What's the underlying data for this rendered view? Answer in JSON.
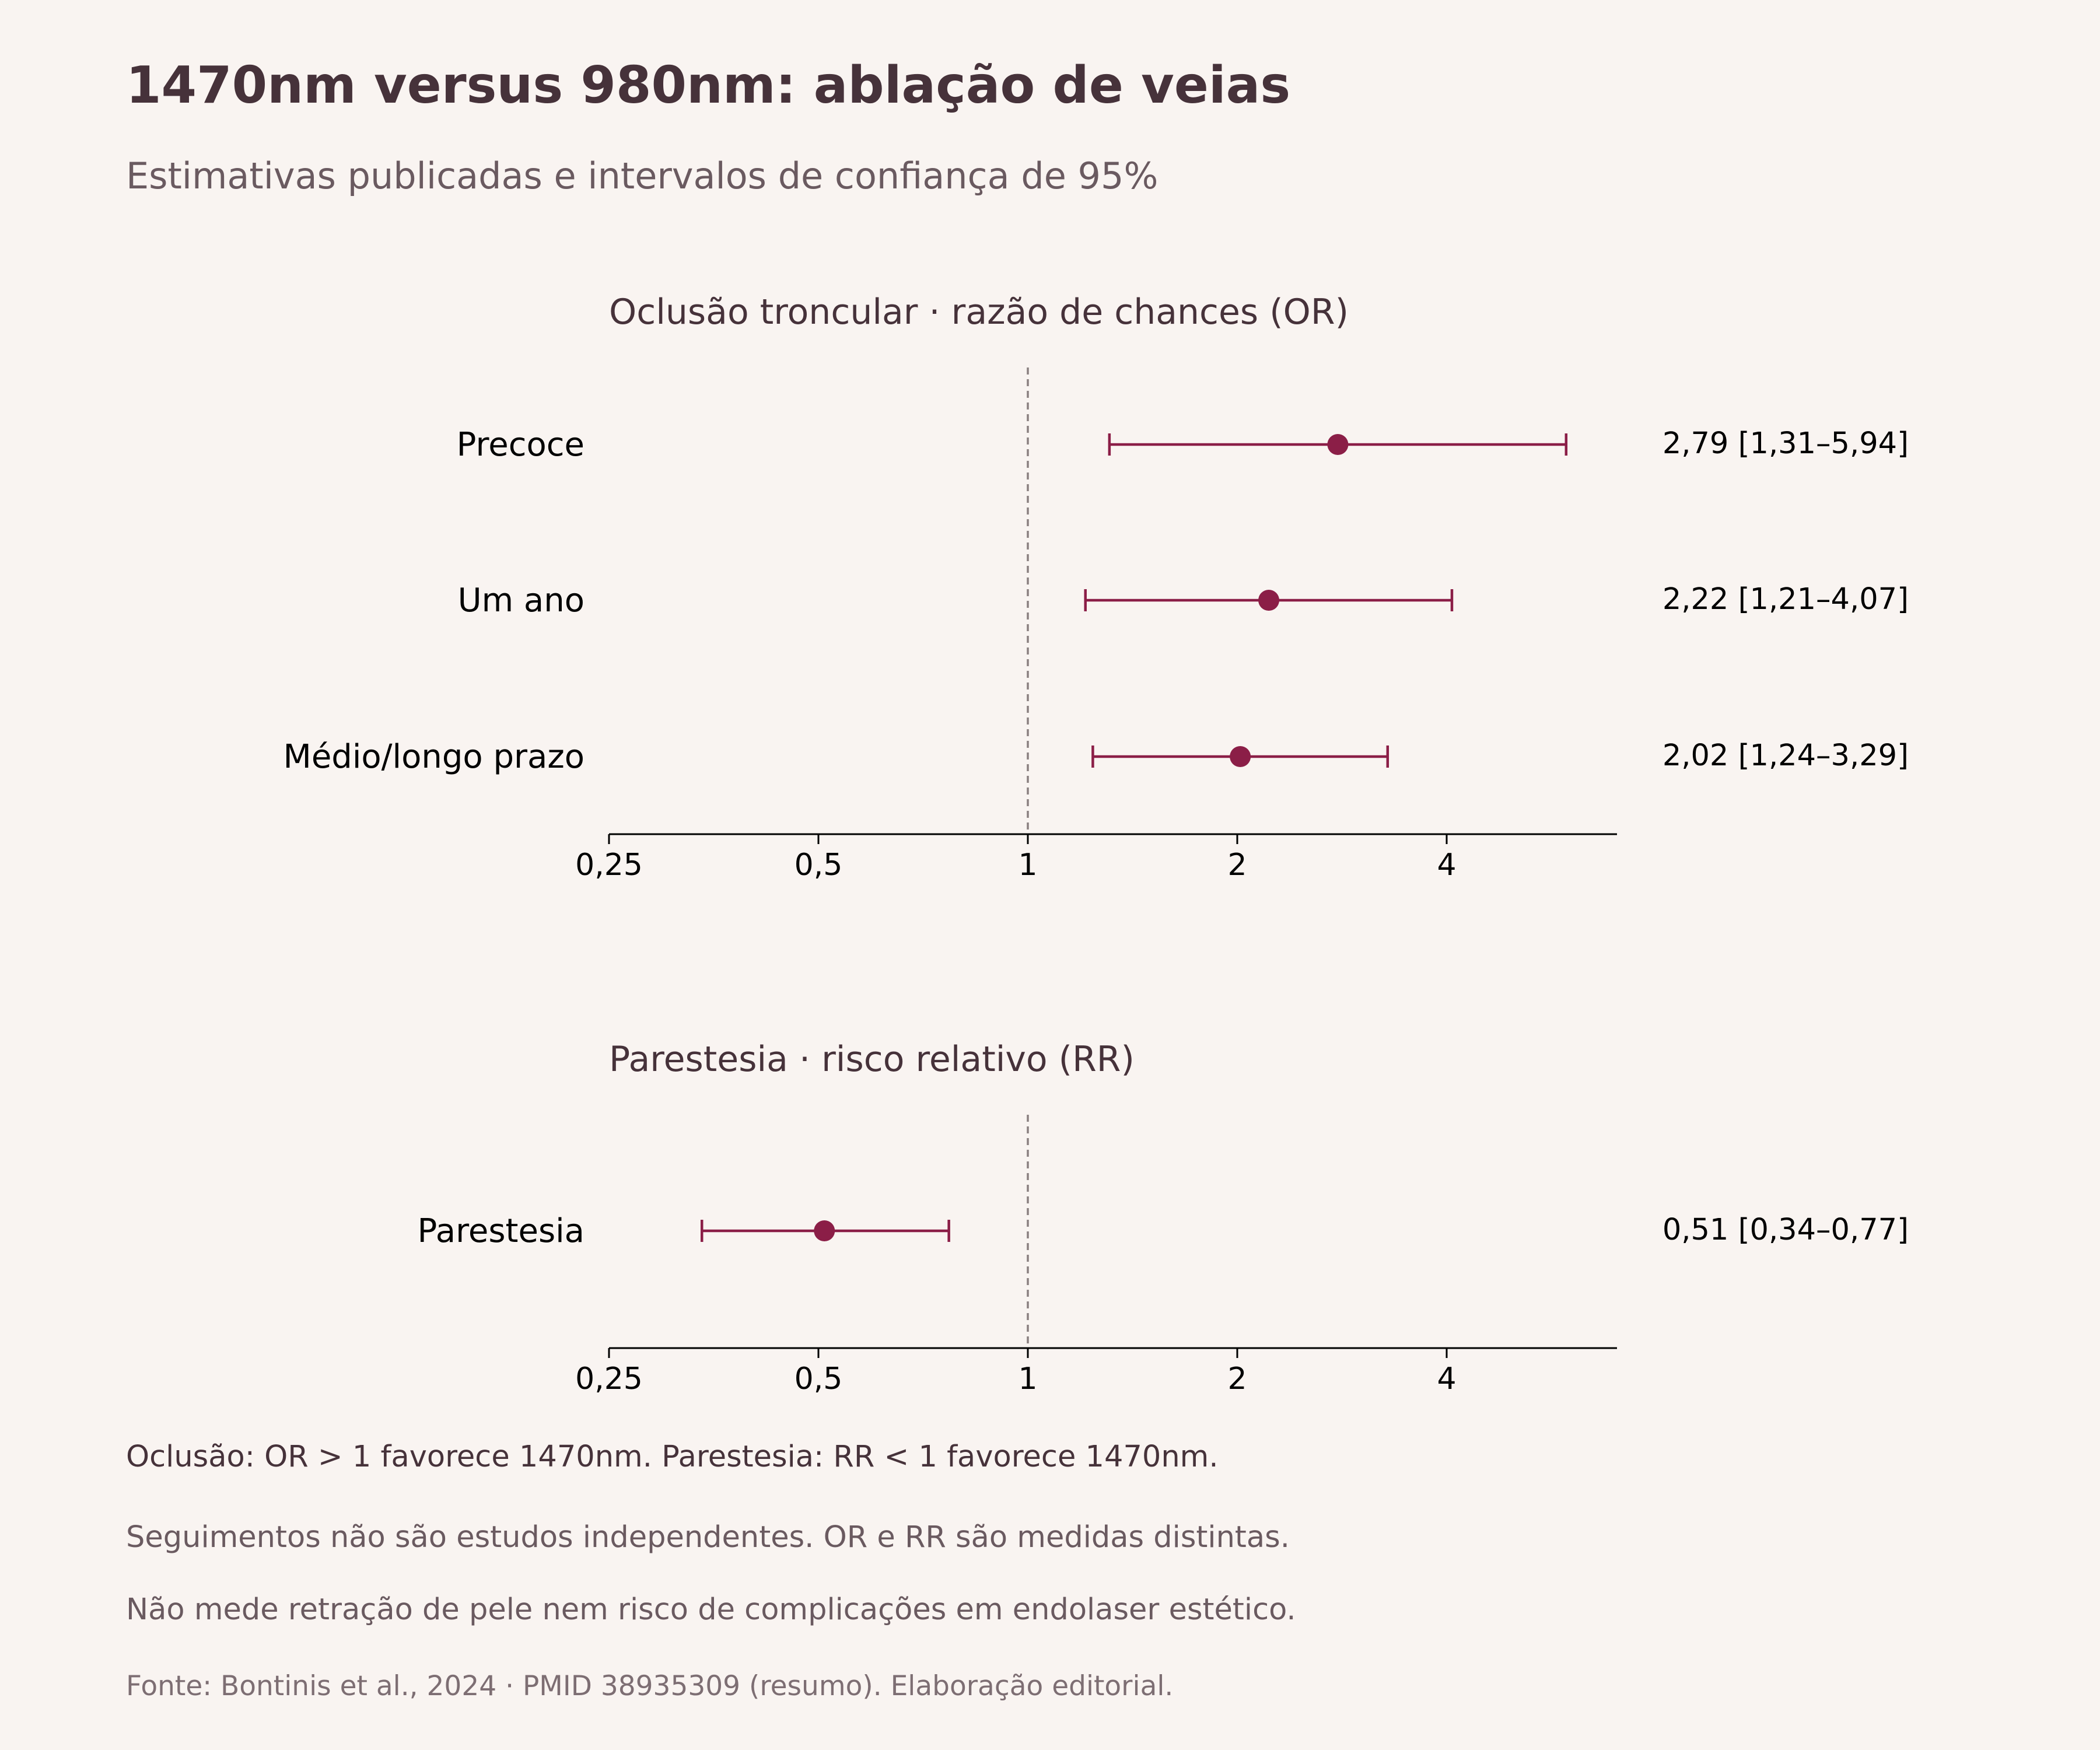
{
  "title": "1470nm versus 980nm: ablação de veias",
  "subtitle": "Estimativas publicadas e intervalos de confiança de 95%",
  "notes": [
    "Oclusão: OR > 1 favorece 1470nm. Parestesia: RR < 1 favorece 1470nm.",
    "Seguimentos não são estudos independentes. OR e RR são medidas distintas.",
    "Não mede retração de pele nem risco de complicações em endolaser estético."
  ],
  "source": "Fonte: Bontinis et al., 2024 · PMID 38935309 (resumo). Elaboração editorial.",
  "colors": {
    "marker": "#8b1e47",
    "reference_line": "#8a8080",
    "axis": "#000000"
  },
  "chart_data": [
    {
      "type": "forest",
      "title": "Oclusão troncular · razão de chances (OR)",
      "x_scale": "log2",
      "xlim": [
        0.25,
        6.0
      ],
      "xticks": [
        0.25,
        0.5,
        1,
        2,
        4
      ],
      "xtick_labels": [
        "0,25",
        "0,5",
        "1",
        "2",
        "4"
      ],
      "reference_value": 1,
      "rows": [
        {
          "label": "Precoce",
          "estimate": 2.79,
          "ci_low": 1.31,
          "ci_high": 5.94,
          "text": "2,79 [1,31–5,94]"
        },
        {
          "label": "Um ano",
          "estimate": 2.22,
          "ci_low": 1.21,
          "ci_high": 4.07,
          "text": "2,22 [1,21–4,07]"
        },
        {
          "label": "Médio/longo prazo",
          "estimate": 2.02,
          "ci_low": 1.24,
          "ci_high": 3.29,
          "text": "2,02 [1,24–3,29]"
        }
      ]
    },
    {
      "type": "forest",
      "title": "Parestesia · risco relativo (RR)",
      "x_scale": "log2",
      "xlim": [
        0.25,
        6.0
      ],
      "xticks": [
        0.25,
        0.5,
        1,
        2,
        4
      ],
      "xtick_labels": [
        "0,25",
        "0,5",
        "1",
        "2",
        "4"
      ],
      "reference_value": 1,
      "rows": [
        {
          "label": "Parestesia",
          "estimate": 0.51,
          "ci_low": 0.34,
          "ci_high": 0.77,
          "text": "0,51 [0,34–0,77]"
        }
      ]
    }
  ]
}
